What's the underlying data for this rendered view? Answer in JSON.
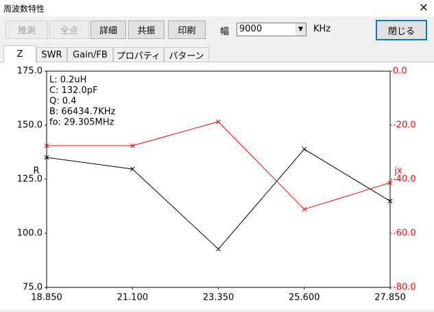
{
  "window": {
    "title": "周波数特性",
    "close": "×"
  },
  "toolbar": {
    "buttons": [
      {
        "label": "推測",
        "enabled": false
      },
      {
        "label": "全点",
        "enabled": false
      },
      {
        "label": "詳細",
        "enabled": true
      },
      {
        "label": "共振",
        "enabled": true
      },
      {
        "label": "印刷",
        "enabled": true
      }
    ],
    "width_label": "幅",
    "width_value": "9000",
    "unit": "KHz",
    "close_button": "閉じる"
  },
  "tabs": {
    "items": [
      "Z",
      "SWR",
      "Gain/FB",
      "プロパティ",
      "パターン"
    ],
    "selected": 0
  },
  "chart_data": {
    "type": "line",
    "x": [
      18.85,
      21.1,
      23.35,
      25.6,
      27.85
    ],
    "xlim": [
      18.85,
      27.85
    ],
    "xticks": [
      {
        "value": 18.85,
        "label": "18.850"
      },
      {
        "value": 21.1,
        "label": "21.100"
      },
      {
        "value": 23.35,
        "label": "23.350"
      },
      {
        "value": 25.6,
        "label": "25.600"
      },
      {
        "value": 27.85,
        "label": "27.850"
      }
    ],
    "ylim": [
      75,
      175
    ],
    "yticks": [
      {
        "value": 75,
        "label": "75.0"
      },
      {
        "value": 100,
        "label": "100.0"
      },
      {
        "value": 125,
        "label": "125.0"
      },
      {
        "value": 150,
        "label": "150.0"
      },
      {
        "value": 175,
        "label": "175.0"
      }
    ],
    "y2lim": [
      -80,
      0
    ],
    "y2ticks": [
      {
        "value": -80,
        "label": "-80.0"
      },
      {
        "value": -60,
        "label": "-60.0"
      },
      {
        "value": -40,
        "label": "-40.0"
      },
      {
        "value": -20,
        "label": "-20.0"
      },
      {
        "value": 0,
        "label": "0.0"
      }
    ],
    "ylabel": "R",
    "y2label": "jx",
    "y2color": "#ff0000",
    "grid": false,
    "annotations": [
      "L: 0.2uH",
      "C: 132.0pF",
      "Q: 0.4",
      "B: 66434.7KHz",
      "fo: 29.305MHz"
    ],
    "series": [
      {
        "color": "#000000",
        "values": [
          135.1,
          129.7,
          92.7,
          138.9,
          114.9
        ]
      },
      {
        "color": "#ff0000",
        "axis": "y2",
        "values": [
          -27.6,
          -27.6,
          -18.7,
          -51.1,
          -41.3
        ]
      }
    ]
  }
}
